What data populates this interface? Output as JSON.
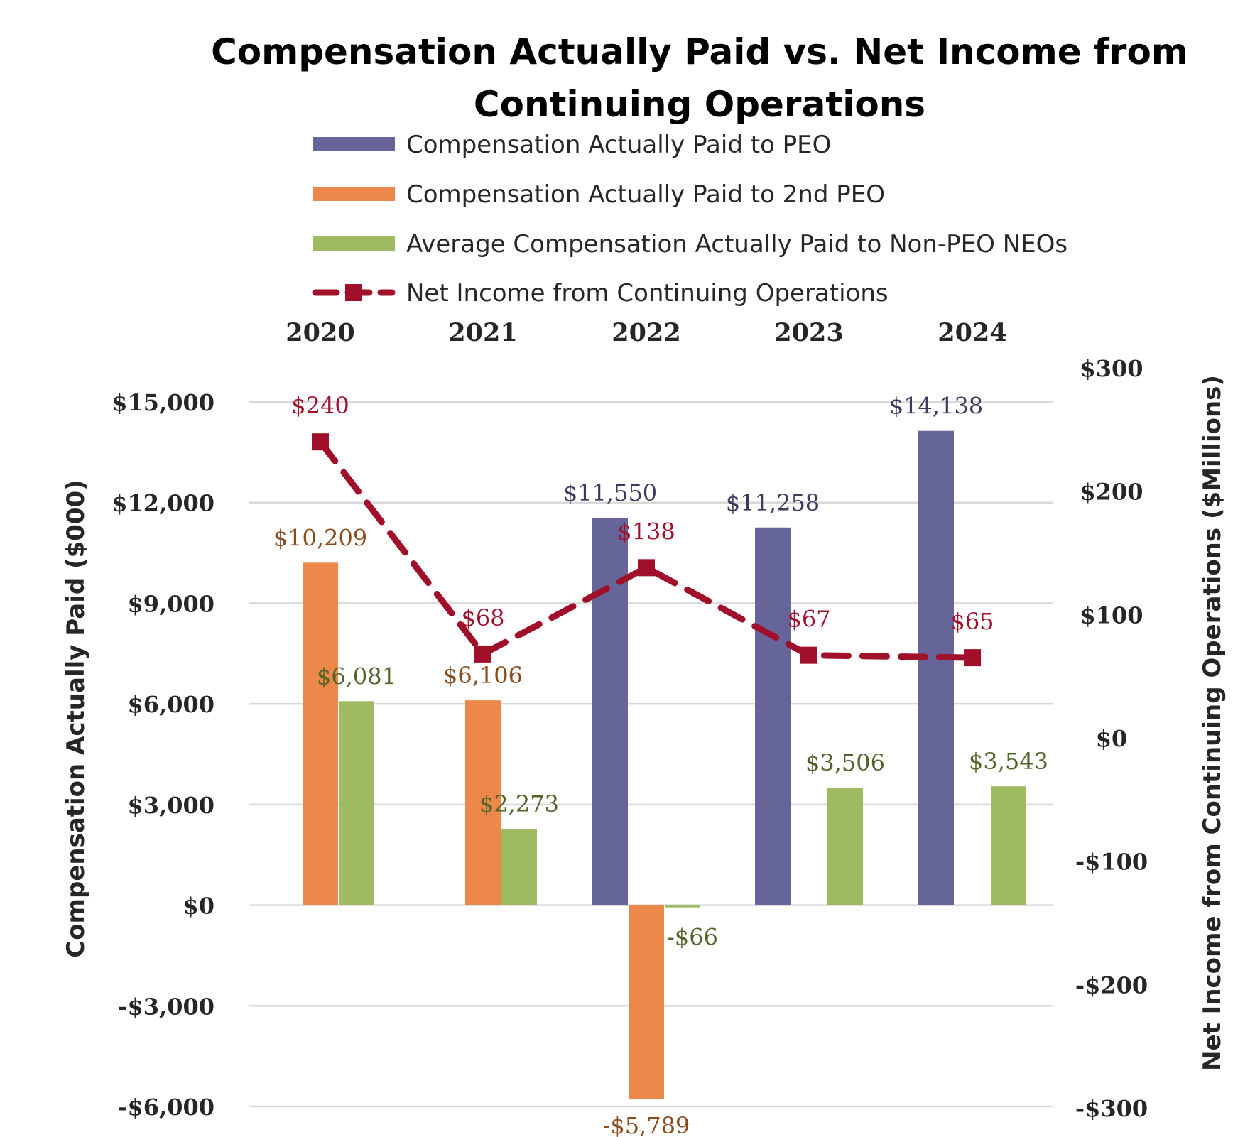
{
  "chart_data": {
    "type": "bar",
    "title": "Compensation Actually Paid vs. Net Income from Continuing Operations",
    "title_lines": [
      "Compensation Actually Paid vs. Net Income from",
      "Continuing Operations"
    ],
    "categories": [
      "2020",
      "2021",
      "2022",
      "2023",
      "2024"
    ],
    "ylabel": "Compensation Actually Paid ($000)",
    "y2label": "Net Income from Continuing Operations ($Millions)",
    "ylim": [
      -6000,
      15000
    ],
    "yticks": [
      15000,
      12000,
      9000,
      6000,
      3000,
      0,
      -3000,
      -6000
    ],
    "ytick_labels": [
      "$15,000",
      "$12,000",
      "$9,000",
      "$6,000",
      "$3,000",
      "$0",
      "-$3,000",
      "-$6,000"
    ],
    "y2lim": [
      -300,
      300
    ],
    "y2ticks": [
      300,
      200,
      100,
      0,
      -100,
      -200,
      -300
    ],
    "y2tick_labels": [
      "$300",
      "$200",
      "$100",
      "$0",
      "-$100",
      "-$200",
      "-$300"
    ],
    "grid": true,
    "legend_position": "top",
    "series": [
      {
        "name": "Compensation Actually Paid to PEO",
        "kind": "bar",
        "color": "#65659A",
        "label_color": "#3A3A5C",
        "values": [
          null,
          null,
          11550,
          11258,
          14138
        ],
        "labels": [
          null,
          null,
          "$11,550",
          "$11,258",
          "$14,138"
        ]
      },
      {
        "name": "Compensation Actually Paid to 2nd PEO",
        "kind": "bar",
        "color": "#EC884A",
        "label_color": "#8B4A1A",
        "values": [
          10209,
          6106,
          -5789,
          null,
          null
        ],
        "labels": [
          "$10,209",
          "$6,106",
          "-$5,789",
          null,
          null
        ]
      },
      {
        "name": "Average Compensation Actually Paid to Non-PEO NEOs",
        "kind": "bar",
        "color": "#9EBB62",
        "label_color": "#4E6428",
        "values": [
          6081,
          2273,
          -66,
          3506,
          3543
        ],
        "labels": [
          "$6,081",
          "$2,273",
          "-$66",
          "$3,506",
          "$3,543"
        ]
      },
      {
        "name": "Net Income from Continuing Operations",
        "kind": "line",
        "axis": "y2",
        "color": "#A0102A",
        "label_color": "#A0102A",
        "values": [
          240,
          68,
          138,
          67,
          65
        ],
        "labels": [
          "$240",
          "$68",
          "$138",
          "$67",
          "$65"
        ]
      }
    ]
  }
}
